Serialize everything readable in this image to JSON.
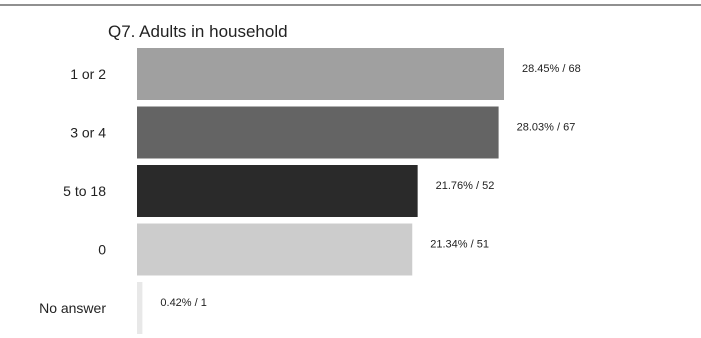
{
  "chart_data": {
    "type": "bar",
    "orientation": "horizontal",
    "title": "Q7. Adults in household",
    "categories": [
      "1 or 2",
      "3 or 4",
      "5 to 18",
      "0",
      "No answer"
    ],
    "values": [
      68,
      67,
      52,
      51,
      1
    ],
    "percentages": [
      28.45,
      28.03,
      21.76,
      21.34,
      0.42
    ],
    "data_labels": [
      "28.45% / 68",
      "28.03% / 67",
      "21.76% / 52",
      "21.34% / 51",
      "0.42% / 1"
    ],
    "bar_colors": [
      "#a0a0a0",
      "#646464",
      "#2a2a2a",
      "#cccccc",
      "#e8e8e8"
    ],
    "xlim": [
      0,
      68
    ],
    "grid": false,
    "legend": "none"
  }
}
